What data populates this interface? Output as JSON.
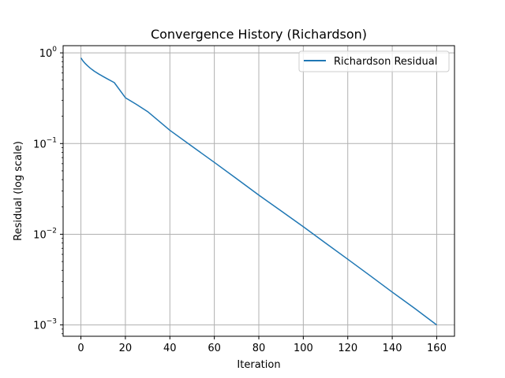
{
  "chart_data": {
    "type": "line",
    "title": "Convergence History (Richardson)",
    "xlabel": "Iteration",
    "ylabel": "Residual (log scale)",
    "xscale": "linear",
    "yscale": "log",
    "xlim": [
      -8,
      168
    ],
    "ylim": [
      0.00075,
      1.2
    ],
    "grid": true,
    "legend_position": "top-right",
    "x_ticks": [
      "0",
      "20",
      "40",
      "60",
      "80",
      "100",
      "120",
      "140",
      "160"
    ],
    "y_ticks": [
      {
        "base": "10",
        "exp": "0"
      },
      {
        "base": "10",
        "exp": "−1"
      },
      {
        "base": "10",
        "exp": "−2"
      },
      {
        "base": "10",
        "exp": "−3"
      }
    ],
    "series": [
      {
        "name": "Richardson Residual",
        "color": "#1f77b4",
        "x": [
          0,
          1,
          2,
          3,
          4,
          5,
          6,
          8,
          10,
          12,
          15,
          20,
          25,
          30,
          40,
          50,
          60,
          70,
          80,
          90,
          100,
          110,
          120,
          130,
          140,
          150,
          160
        ],
        "y": [
          0.88,
          0.81,
          0.76,
          0.72,
          0.685,
          0.655,
          0.628,
          0.585,
          0.548,
          0.515,
          0.47,
          0.32,
          0.27,
          0.225,
          0.14,
          0.093,
          0.062,
          0.041,
          0.027,
          0.0181,
          0.0121,
          0.008,
          0.0053,
          0.0035,
          0.0023,
          0.00153,
          0.001
        ]
      }
    ]
  }
}
